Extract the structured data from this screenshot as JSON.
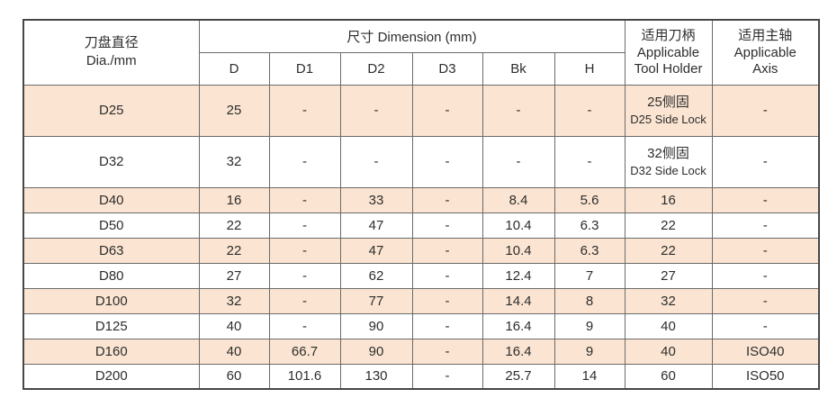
{
  "colors": {
    "row_highlight": "#fbe5d2",
    "border": "#6a6a6a",
    "border_strong": "#474747",
    "text": "#2d2d2d"
  },
  "table": {
    "headers": {
      "dia_zh": "刀盘直径",
      "dia_en": "Dia./mm",
      "dimension": "尺寸  Dimension (mm)",
      "holder_zh": "适用刀柄",
      "holder_en1": "Applicable",
      "holder_en2": "Tool Holder",
      "axis_zh": "适用主轴",
      "axis_en1": "Applicable",
      "axis_en2": "Axis"
    },
    "sub_headers": [
      "D",
      "D1",
      "D2",
      "D3",
      "Bk",
      "H"
    ],
    "rows": [
      {
        "dia": "D25",
        "d": "25",
        "d1": "-",
        "d2": "-",
        "d3": "-",
        "bk": "-",
        "h": "-",
        "holder": [
          "25侧固",
          "D25 Side Lock"
        ],
        "axis": "-",
        "highlight": true,
        "tall": true
      },
      {
        "dia": "D32",
        "d": "32",
        "d1": "-",
        "d2": "-",
        "d3": "-",
        "bk": "-",
        "h": "-",
        "holder": [
          "32侧固",
          "D32 Side Lock"
        ],
        "axis": "-",
        "highlight": false,
        "tall": true
      },
      {
        "dia": "D40",
        "d": "16",
        "d1": "-",
        "d2": "33",
        "d3": "-",
        "bk": "8.4",
        "h": "5.6",
        "holder": [
          "16"
        ],
        "axis": "-",
        "highlight": true,
        "tall": false
      },
      {
        "dia": "D50",
        "d": "22",
        "d1": "-",
        "d2": "47",
        "d3": "-",
        "bk": "10.4",
        "h": "6.3",
        "holder": [
          "22"
        ],
        "axis": "-",
        "highlight": false,
        "tall": false
      },
      {
        "dia": "D63",
        "d": "22",
        "d1": "-",
        "d2": "47",
        "d3": "-",
        "bk": "10.4",
        "h": "6.3",
        "holder": [
          "22"
        ],
        "axis": "-",
        "highlight": true,
        "tall": false
      },
      {
        "dia": "D80",
        "d": "27",
        "d1": "-",
        "d2": "62",
        "d3": "-",
        "bk": "12.4",
        "h": "7",
        "holder": [
          "27"
        ],
        "axis": "-",
        "highlight": false,
        "tall": false
      },
      {
        "dia": "D100",
        "d": "32",
        "d1": "-",
        "d2": "77",
        "d3": "-",
        "bk": "14.4",
        "h": "8",
        "holder": [
          "32"
        ],
        "axis": "-",
        "highlight": true,
        "tall": false
      },
      {
        "dia": "D125",
        "d": "40",
        "d1": "-",
        "d2": "90",
        "d3": "-",
        "bk": "16.4",
        "h": "9",
        "holder": [
          "40"
        ],
        "axis": "-",
        "highlight": false,
        "tall": false
      },
      {
        "dia": "D160",
        "d": "40",
        "d1": "66.7",
        "d2": "90",
        "d3": "-",
        "bk": "16.4",
        "h": "9",
        "holder": [
          "40"
        ],
        "axis": "ISO40",
        "highlight": true,
        "tall": false
      },
      {
        "dia": "D200",
        "d": "60",
        "d1": "101.6",
        "d2": "130",
        "d3": "-",
        "bk": "25.7",
        "h": "14",
        "holder": [
          "60"
        ],
        "axis": "ISO50",
        "highlight": false,
        "tall": false
      }
    ]
  }
}
